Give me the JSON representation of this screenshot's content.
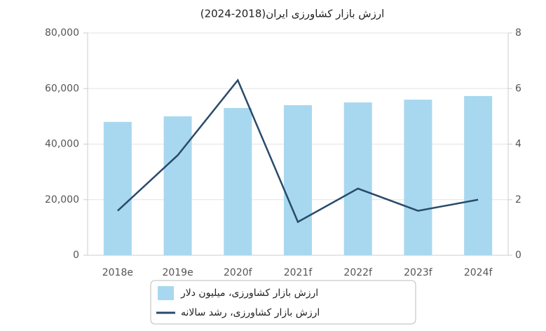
{
  "chart_data": {
    "type": "bar-line",
    "title": "ارزش بازار کشاورزی ایران(2018-2024)",
    "categories": [
      "2018e",
      "2019e",
      "2020f",
      "2021f",
      "2022f",
      "2023f",
      "2024f"
    ],
    "series": [
      {
        "name": "ارزش بازار کشاورزی، میلیون دلار",
        "type": "bar",
        "color": "#a8d8ef",
        "values": [
          48000,
          50000,
          53000,
          54000,
          55000,
          56000,
          57300
        ]
      },
      {
        "name": "ارزش بازار کشاورزی، رشد سالانه",
        "type": "line",
        "axis": "y2",
        "color": "#2a4a6b",
        "values": [
          1.6,
          3.6,
          6.3,
          1.2,
          2.4,
          1.6,
          2.0
        ]
      }
    ],
    "ylim": [
      0,
      80000
    ],
    "yticks": [
      0,
      {
        "value": 20000,
        "label": "20,000"
      },
      {
        "value": 40000,
        "label": "40,000"
      },
      {
        "value": 60000,
        "label": "60,000"
      },
      {
        "value": 80000,
        "label": "80,000"
      }
    ],
    "y2lim": [
      0,
      8
    ],
    "y2ticks": [
      0,
      2,
      4,
      6,
      8
    ],
    "grid": true
  }
}
